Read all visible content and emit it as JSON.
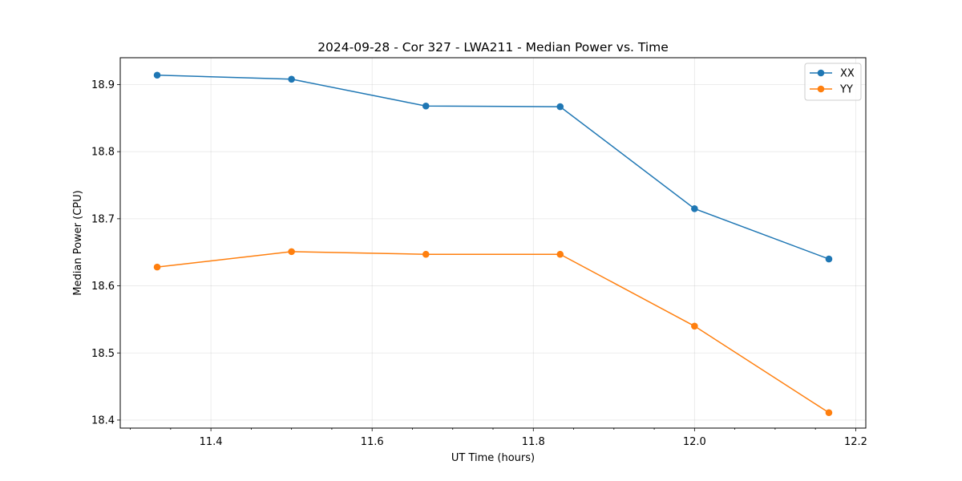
{
  "chart_data": {
    "type": "line",
    "title": "2024-09-28 - Cor 327 - LWA211 - Median Power vs. Time",
    "xlabel": "UT Time (hours)",
    "ylabel": "Median Power (CPU)",
    "xlim": [
      11.2875,
      12.2125
    ],
    "ylim": [
      18.388,
      18.94
    ],
    "xticks": [
      11.4,
      11.6,
      11.8,
      12.0,
      12.2
    ],
    "xtick_labels": [
      "11.4",
      "11.6",
      "11.8",
      "12.0",
      "12.2"
    ],
    "yticks": [
      18.4,
      18.5,
      18.6,
      18.7,
      18.8,
      18.9
    ],
    "ytick_labels": [
      "18.4",
      "18.5",
      "18.6",
      "18.7",
      "18.8",
      "18.9"
    ],
    "x_minor_step": 0.05,
    "grid": true,
    "legend_position": "top-right",
    "x": [
      11.3333,
      11.5,
      11.6667,
      11.8333,
      12.0,
      12.1667
    ],
    "series": [
      {
        "name": "XX",
        "color": "#1f77b4",
        "values": [
          18.914,
          18.908,
          18.868,
          18.867,
          18.715,
          18.64
        ]
      },
      {
        "name": "YY",
        "color": "#ff7f0e",
        "values": [
          18.628,
          18.651,
          18.647,
          18.647,
          18.54,
          18.411
        ]
      }
    ]
  }
}
